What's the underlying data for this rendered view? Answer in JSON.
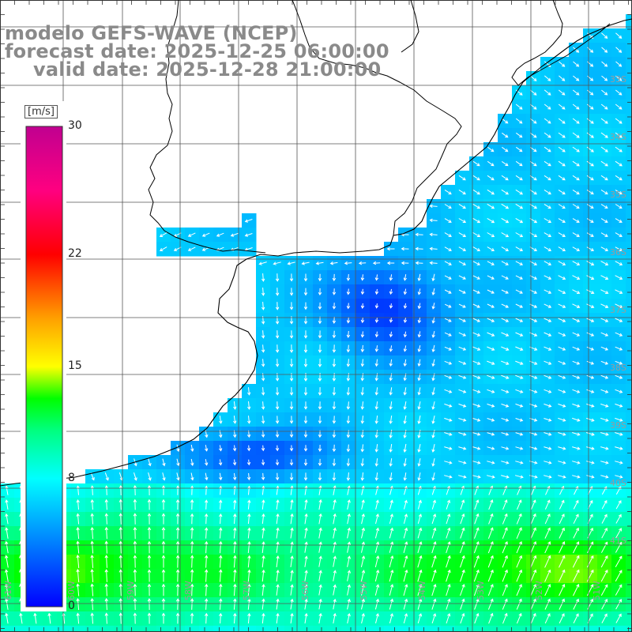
{
  "title": {
    "model": "modelo GEFS-WAVE (NCEP)",
    "forecast": "forecast date: 2025-12-25 06:00:00",
    "valid": "valid date: 2025-12-28 21:00:00"
  },
  "colorbar": {
    "unit": "[m/s]",
    "range": [
      0,
      30
    ],
    "ticks": [
      {
        "value": 30,
        "label": "30"
      },
      {
        "value": 22,
        "label": "22"
      },
      {
        "value": 15,
        "label": "15"
      },
      {
        "value": 8,
        "label": "8"
      },
      {
        "value": 0,
        "label": "0"
      }
    ],
    "stops": [
      {
        "v": 0,
        "c": "#0000ff"
      },
      {
        "v": 4,
        "c": "#0080ff"
      },
      {
        "v": 8,
        "c": "#00ffff"
      },
      {
        "v": 11,
        "c": "#00ff80"
      },
      {
        "v": 13,
        "c": "#00ff00"
      },
      {
        "v": 15,
        "c": "#ffff00"
      },
      {
        "v": 18,
        "c": "#ffa000"
      },
      {
        "v": 22,
        "c": "#ff0000"
      },
      {
        "v": 26,
        "c": "#ff0080"
      },
      {
        "v": 30,
        "c": "#c00090"
      }
    ]
  },
  "map": {
    "region": "Rio de la Plata / South Atlantic",
    "lon_labels": [
      "61W",
      "60W",
      "59W",
      "58W",
      "57W",
      "56W",
      "55W",
      "54W",
      "53W",
      "52W",
      "51W"
    ],
    "lat_labels": [
      "33S",
      "34S",
      "35S",
      "36S",
      "37S",
      "38S",
      "39S",
      "40S",
      "41S"
    ],
    "colors": {
      "grid": "#555555",
      "coast": "#000000",
      "arrow": "#ffffff",
      "land": "#ffffff",
      "label": "#9a9a9a"
    }
  }
}
